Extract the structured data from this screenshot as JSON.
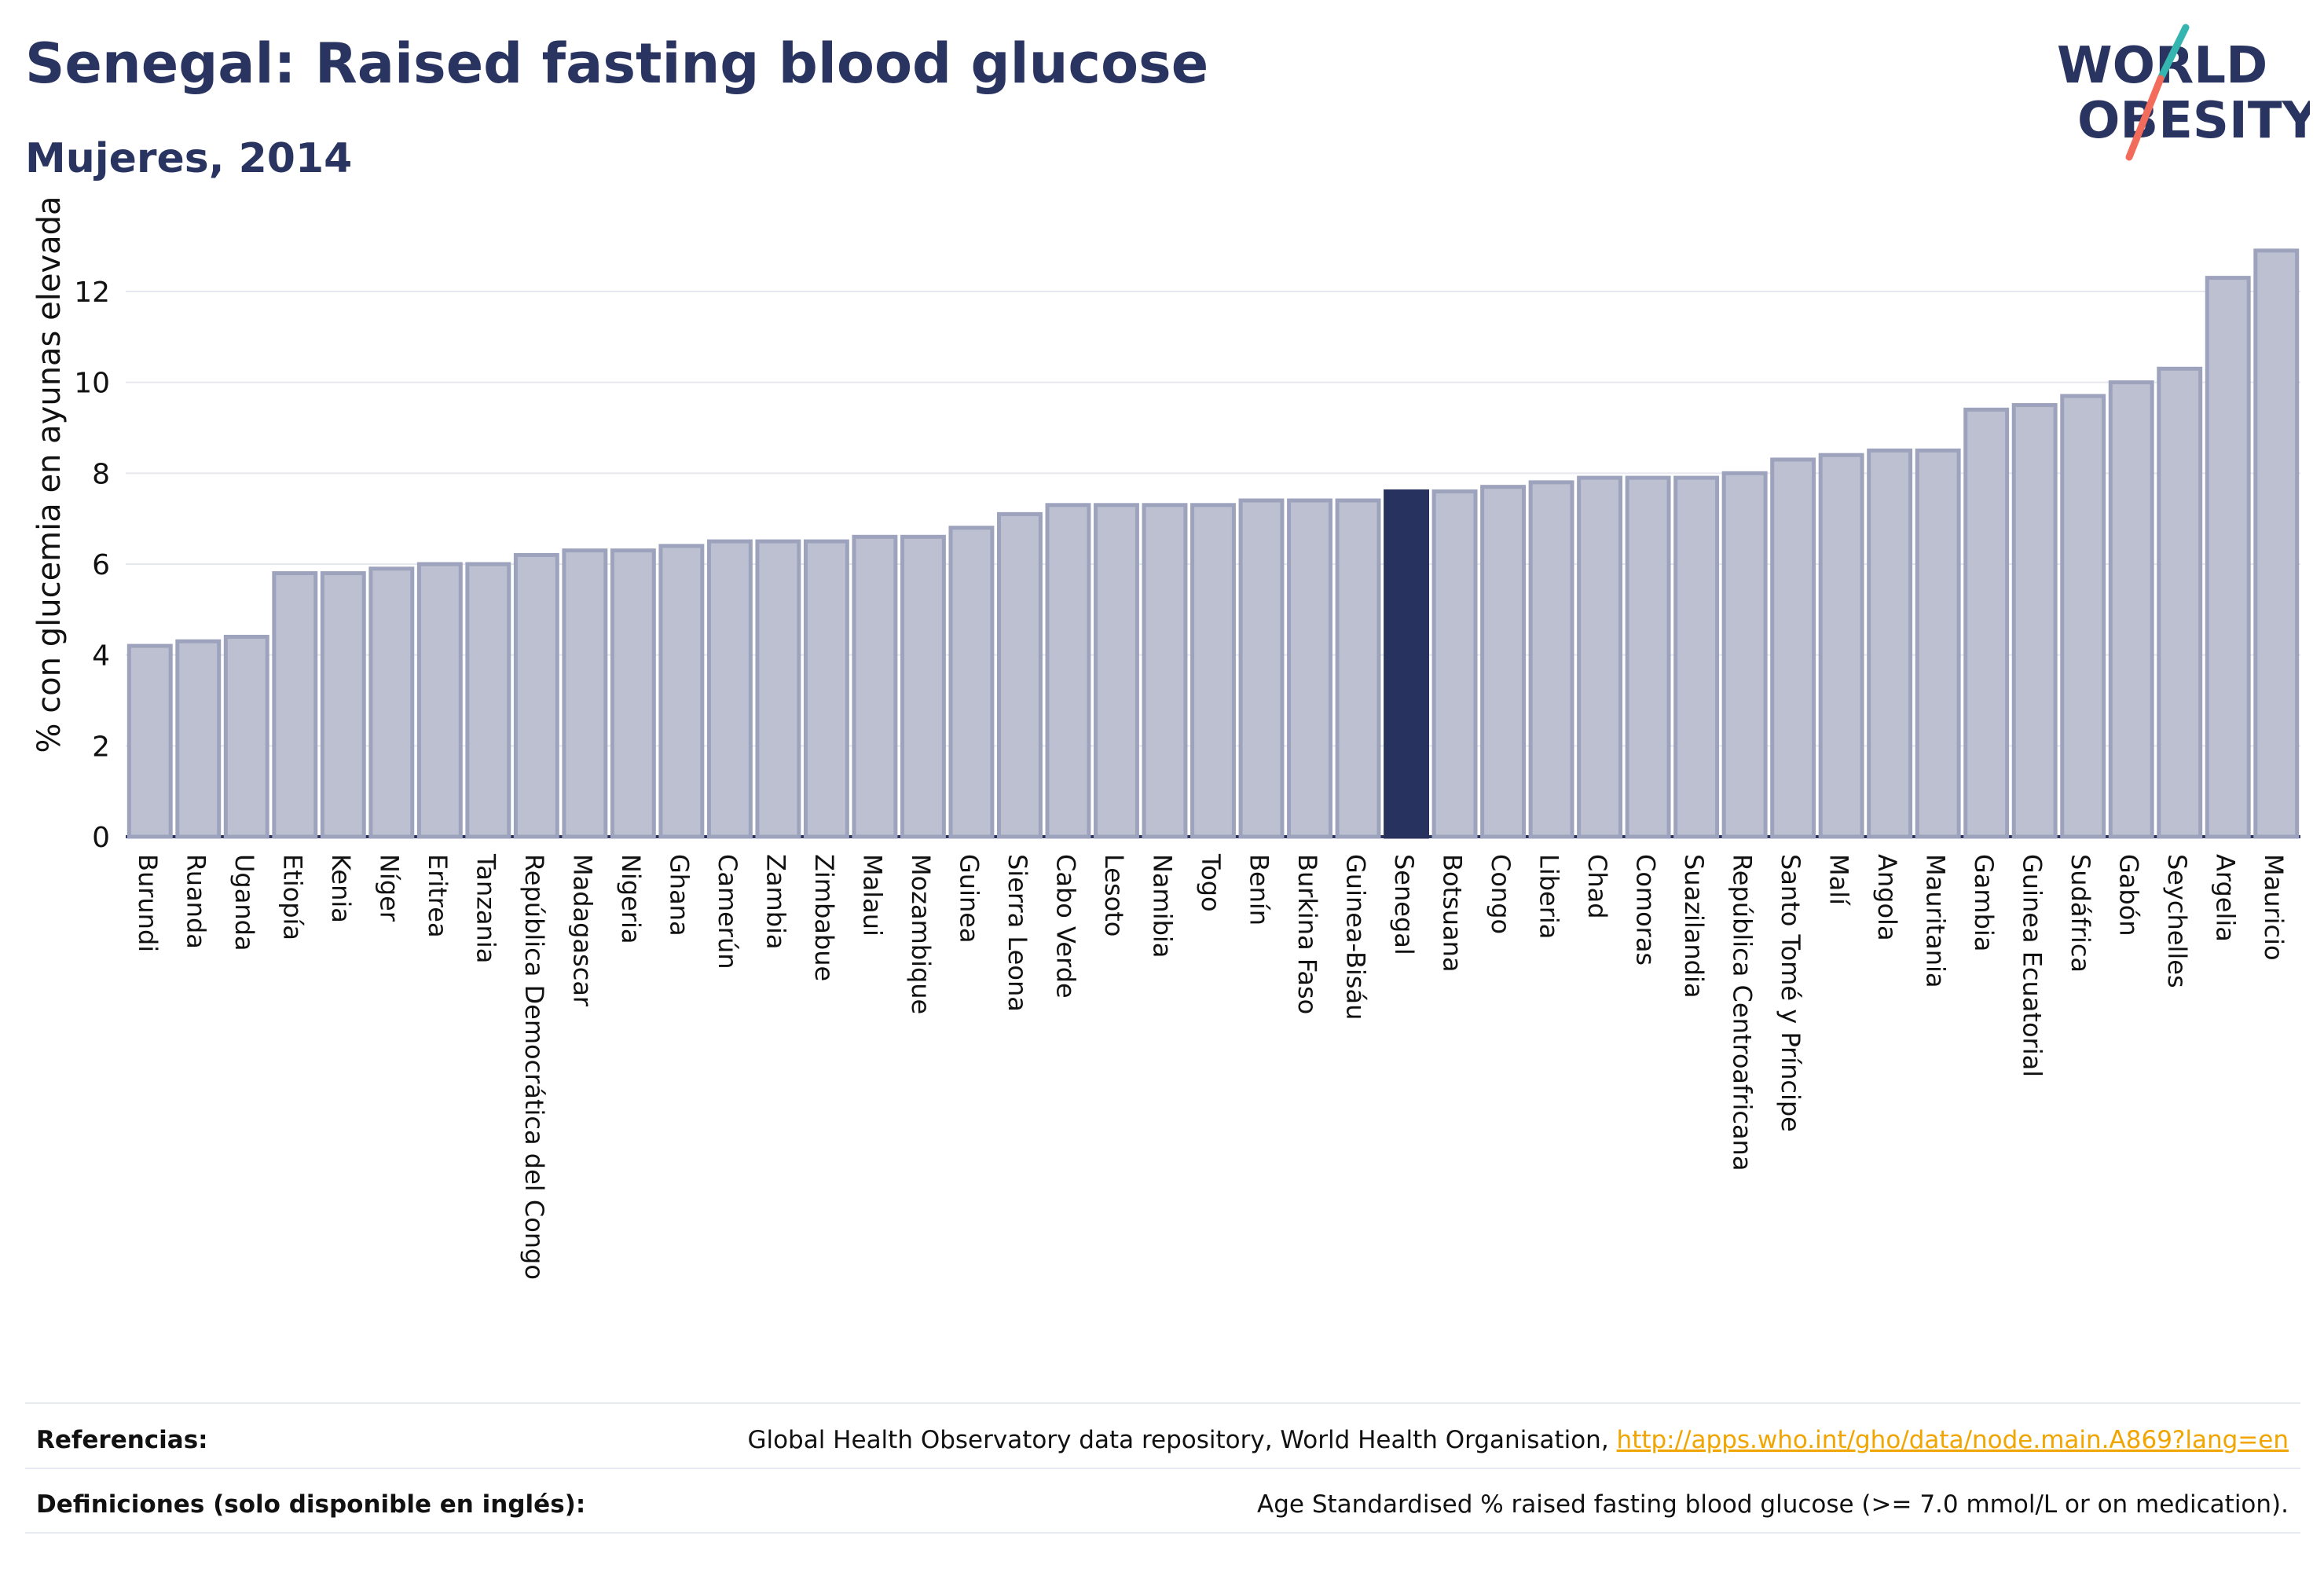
{
  "header": {
    "title": "Senegal: Raised fasting blood glucose",
    "subtitle": "Mujeres, 2014"
  },
  "logo": {
    "line1": "WORLD",
    "line2": "OBESITY"
  },
  "chart_data": {
    "type": "bar",
    "title": "Senegal: Raised fasting blood glucose",
    "subtitle": "Mujeres, 2014",
    "ylabel": "% con glucemia en ayunas elevada",
    "xlabel": "",
    "ylim": [
      0,
      13.4
    ],
    "yticks": [
      0,
      2,
      4,
      6,
      8,
      10,
      12
    ],
    "grid": true,
    "highlight": "Senegal",
    "colors": {
      "bar": "#bcc0d0",
      "bar_border": "#9da3bd",
      "highlight": "#27325e",
      "grid": "#e6e8ef"
    },
    "categories": [
      "Burundi",
      "Ruanda",
      "Uganda",
      "Etiopía",
      "Kenia",
      "Níger",
      "Eritrea",
      "Tanzania",
      "República Democrática del Congo",
      "Madagascar",
      "Nigeria",
      "Ghana",
      "Camerún",
      "Zambia",
      "Zimbabue",
      "Malaui",
      "Mozambique",
      "Guinea",
      "Sierra Leona",
      "Cabo Verde",
      "Lesoto",
      "Namibia",
      "Togo",
      "Benín",
      "Burkina Faso",
      "Guinea-Bisáu",
      "Senegal",
      "Botsuana",
      "Congo",
      "Liberia",
      "Chad",
      "Comoras",
      "Suazilandia",
      "República Centroafricana",
      "Santo Tomé y Príncipe",
      "Malí",
      "Angola",
      "Mauritania",
      "Gambia",
      "Guinea Ecuatorial",
      "Sudáfrica",
      "Gabón",
      "Seychelles",
      "Argelia",
      "Mauricio"
    ],
    "values": [
      4.2,
      4.3,
      4.4,
      5.8,
      5.8,
      5.9,
      6.0,
      6.0,
      6.2,
      6.3,
      6.3,
      6.4,
      6.5,
      6.5,
      6.5,
      6.6,
      6.6,
      6.8,
      7.1,
      7.3,
      7.3,
      7.3,
      7.3,
      7.4,
      7.4,
      7.4,
      7.6,
      7.6,
      7.7,
      7.8,
      7.9,
      7.9,
      7.9,
      8.0,
      8.3,
      8.4,
      8.5,
      8.5,
      9.4,
      9.5,
      9.7,
      10.0,
      10.3,
      12.3,
      12.9
    ]
  },
  "footer": {
    "references_label": "Referencias:",
    "references_text": "Global Health Observatory data repository, World Health Organisation, ",
    "references_link": "http://apps.who.int/gho/data/node.main.A869?lang=en",
    "definitions_label": "Definiciones (solo disponible en inglés):",
    "definitions_text": "Age Standardised % raised fasting blood glucose (>= 7.0 mmol/L or on medication)."
  }
}
